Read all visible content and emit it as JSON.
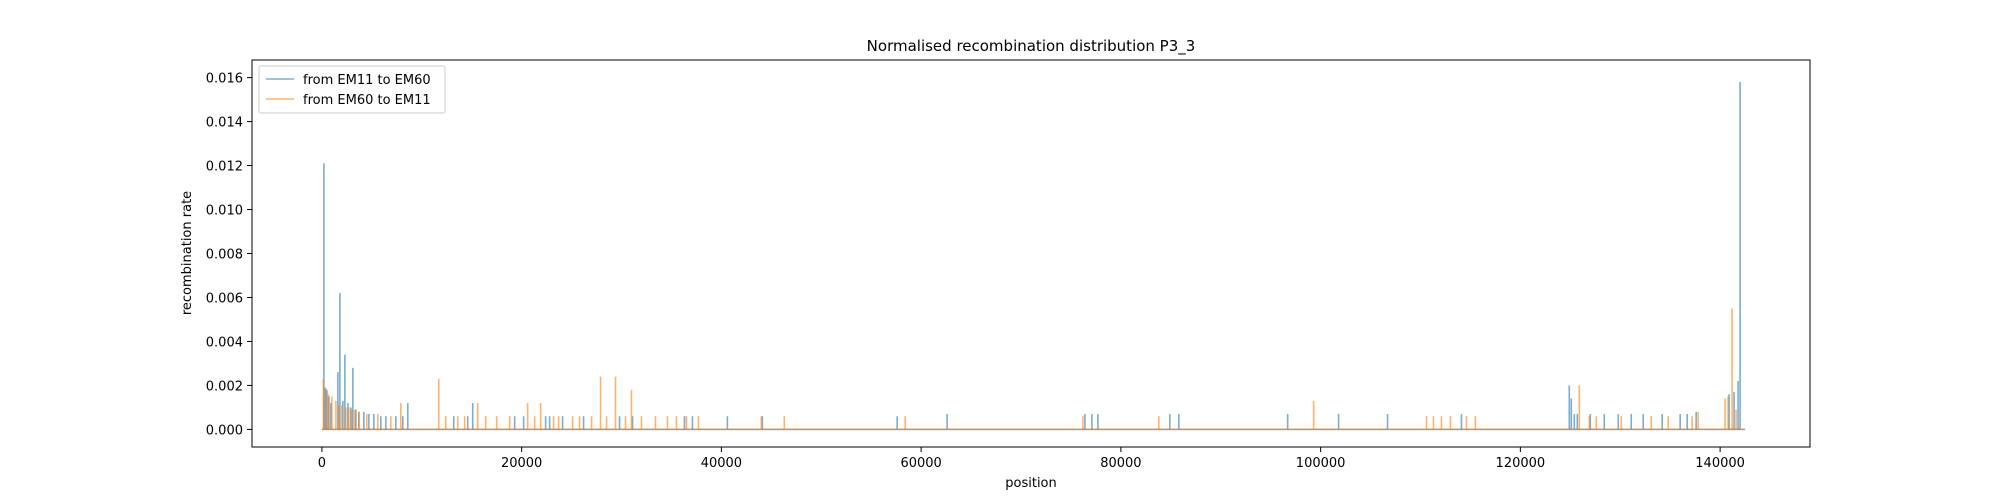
{
  "chart_data": {
    "type": "line",
    "title": "Normalised recombination distribution P3_3",
    "xlabel": "position",
    "ylabel": "recombination rate",
    "xlim": [
      -7000,
      149000
    ],
    "ylim": [
      -0.0008,
      0.0168
    ],
    "xticks": [
      0,
      20000,
      40000,
      60000,
      80000,
      100000,
      120000,
      140000
    ],
    "xtick_labels": [
      "0",
      "20000",
      "40000",
      "60000",
      "80000",
      "100000",
      "120000",
      "140000"
    ],
    "yticks": [
      0.0,
      0.002,
      0.004,
      0.006,
      0.008,
      0.01,
      0.012,
      0.014,
      0.016
    ],
    "ytick_labels": [
      "0.000",
      "0.002",
      "0.004",
      "0.006",
      "0.008",
      "0.010",
      "0.012",
      "0.014",
      "0.016"
    ],
    "grid": false,
    "legend_position": "top-left",
    "x_range": [
      0,
      142500
    ],
    "series": [
      {
        "name": "from EM11 to EM60",
        "color": "#1f77b4",
        "peaks": [
          [
            200,
            0.0121
          ],
          [
            350,
            0.0019
          ],
          [
            500,
            0.0018
          ],
          [
            700,
            0.0015
          ],
          [
            900,
            0.0012
          ],
          [
            1600,
            0.0026
          ],
          [
            1800,
            0.0062
          ],
          [
            2100,
            0.0013
          ],
          [
            2300,
            0.0034
          ],
          [
            2600,
            0.0012
          ],
          [
            2900,
            0.001
          ],
          [
            3100,
            0.0028
          ],
          [
            3400,
            0.0009
          ],
          [
            3700,
            0.0008
          ],
          [
            4200,
            0.0008
          ],
          [
            4700,
            0.0007
          ],
          [
            5200,
            0.0007
          ],
          [
            5900,
            0.0006
          ],
          [
            6400,
            0.0006
          ],
          [
            7400,
            0.0006
          ],
          [
            8100,
            0.0006
          ],
          [
            8600,
            0.0012
          ],
          [
            13200,
            0.0006
          ],
          [
            14600,
            0.0006
          ],
          [
            15100,
            0.0012
          ],
          [
            19300,
            0.0006
          ],
          [
            20200,
            0.0006
          ],
          [
            22400,
            0.0006
          ],
          [
            22800,
            0.0006
          ],
          [
            24100,
            0.0006
          ],
          [
            26200,
            0.0006
          ],
          [
            29800,
            0.0006
          ],
          [
            31100,
            0.0006
          ],
          [
            36300,
            0.0006
          ],
          [
            37100,
            0.0006
          ],
          [
            40600,
            0.0006
          ],
          [
            44100,
            0.0006
          ],
          [
            57600,
            0.0006
          ],
          [
            62600,
            0.0007
          ],
          [
            76400,
            0.0007
          ],
          [
            77100,
            0.0007
          ],
          [
            77700,
            0.0007
          ],
          [
            84900,
            0.0007
          ],
          [
            85800,
            0.0007
          ],
          [
            96700,
            0.0007
          ],
          [
            101800,
            0.0007
          ],
          [
            106700,
            0.0007
          ],
          [
            114100,
            0.0007
          ],
          [
            124900,
            0.002
          ],
          [
            125100,
            0.0014
          ],
          [
            125400,
            0.0007
          ],
          [
            125700,
            0.0007
          ],
          [
            127000,
            0.0007
          ],
          [
            128400,
            0.0007
          ],
          [
            129800,
            0.0007
          ],
          [
            131100,
            0.0007
          ],
          [
            132300,
            0.0007
          ],
          [
            134200,
            0.0007
          ],
          [
            136000,
            0.0007
          ],
          [
            136700,
            0.0007
          ],
          [
            137600,
            0.0008
          ],
          [
            140900,
            0.0016
          ],
          [
            141400,
            0.0017
          ],
          [
            141800,
            0.0022
          ],
          [
            142000,
            0.0158
          ]
        ]
      },
      {
        "name": "from EM60 to EM11",
        "color": "#ff7f0e",
        "peaks": [
          [
            150,
            0.0023
          ],
          [
            400,
            0.0018
          ],
          [
            650,
            0.0016
          ],
          [
            1000,
            0.0015
          ],
          [
            1400,
            0.0013
          ],
          [
            1700,
            0.0011
          ],
          [
            2000,
            0.0011
          ],
          [
            2400,
            0.001
          ],
          [
            2700,
            0.001
          ],
          [
            3000,
            0.0009
          ],
          [
            3300,
            0.0009
          ],
          [
            3700,
            0.0008
          ],
          [
            4500,
            0.0007
          ],
          [
            5600,
            0.0007
          ],
          [
            6900,
            0.0006
          ],
          [
            7900,
            0.0012
          ],
          [
            11700,
            0.0023
          ],
          [
            12400,
            0.0006
          ],
          [
            13600,
            0.0006
          ],
          [
            14300,
            0.0006
          ],
          [
            15600,
            0.0012
          ],
          [
            16400,
            0.0006
          ],
          [
            17500,
            0.0006
          ],
          [
            18800,
            0.0006
          ],
          [
            20600,
            0.0012
          ],
          [
            21300,
            0.0006
          ],
          [
            21900,
            0.0012
          ],
          [
            23200,
            0.0006
          ],
          [
            23700,
            0.0006
          ],
          [
            25100,
            0.0006
          ],
          [
            25800,
            0.0006
          ],
          [
            27000,
            0.0006
          ],
          [
            27900,
            0.0024
          ],
          [
            28500,
            0.0006
          ],
          [
            29400,
            0.0024
          ],
          [
            30400,
            0.0006
          ],
          [
            31000,
            0.0018
          ],
          [
            32000,
            0.0006
          ],
          [
            33400,
            0.0006
          ],
          [
            34600,
            0.0006
          ],
          [
            35500,
            0.0006
          ],
          [
            36500,
            0.0006
          ],
          [
            37700,
            0.0006
          ],
          [
            44000,
            0.0006
          ],
          [
            46300,
            0.0006
          ],
          [
            58400,
            0.0006
          ],
          [
            76200,
            0.0006
          ],
          [
            83800,
            0.0006
          ],
          [
            99300,
            0.0013
          ],
          [
            110600,
            0.0006
          ],
          [
            111300,
            0.0006
          ],
          [
            112100,
            0.0006
          ],
          [
            113000,
            0.0006
          ],
          [
            114600,
            0.0006
          ],
          [
            115500,
            0.0006
          ],
          [
            125900,
            0.002
          ],
          [
            126900,
            0.0006
          ],
          [
            127600,
            0.0006
          ],
          [
            130100,
            0.0006
          ],
          [
            133100,
            0.0006
          ],
          [
            134800,
            0.0006
          ],
          [
            137200,
            0.0006
          ],
          [
            137800,
            0.0008
          ],
          [
            140500,
            0.0014
          ],
          [
            140800,
            0.0015
          ],
          [
            141200,
            0.0055
          ],
          [
            141600,
            0.0009
          ]
        ]
      }
    ]
  }
}
